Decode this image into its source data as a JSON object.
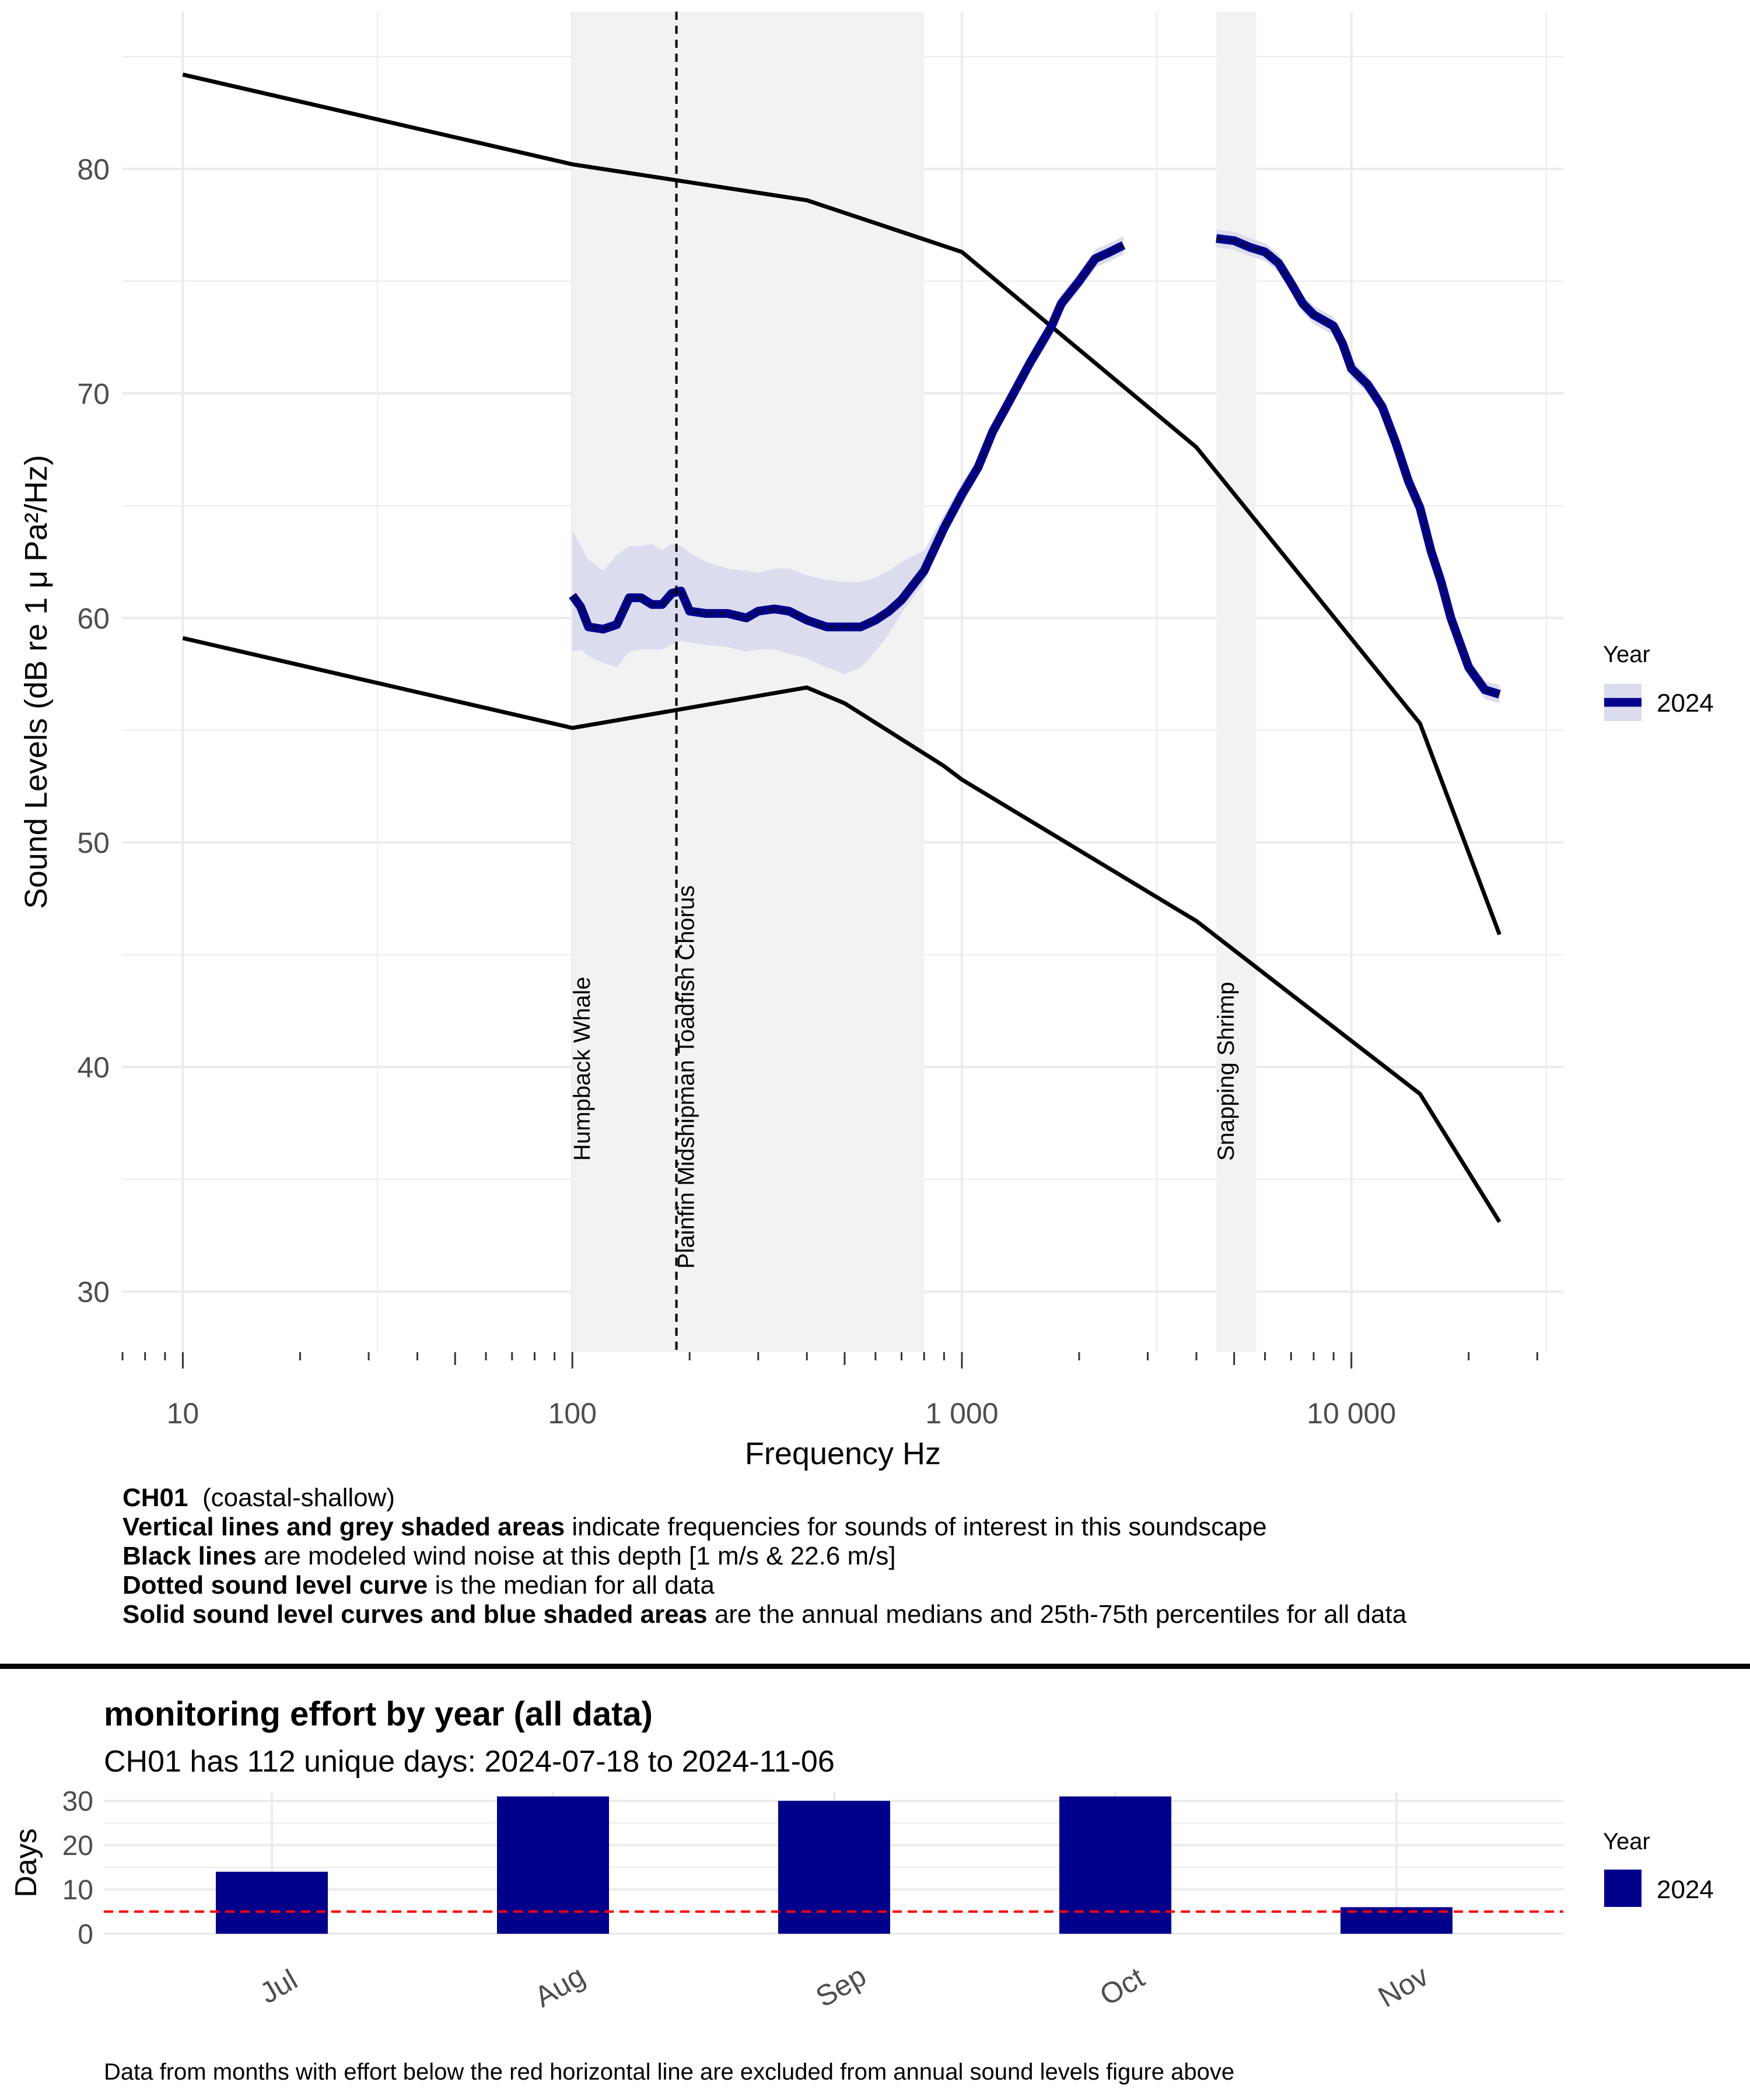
{
  "chart_data": [
    {
      "type": "line",
      "xlabel": "Frequency Hz",
      "ylabel": "Sound Levels (dB re 1 μ Pa²/Hz)",
      "x_scale": "log10",
      "xlim": [
        7,
        35000
      ],
      "ylim": [
        27.3,
        87
      ],
      "x_ticks": [
        10,
        100,
        1000,
        10000
      ],
      "x_tick_labels": [
        "10",
        "100",
        "1 000",
        "10 000"
      ],
      "y_ticks": [
        30,
        40,
        50,
        60,
        70,
        80
      ],
      "y_tick_labels": [
        "30",
        "40",
        "50",
        "60",
        "70",
        "80"
      ],
      "grid": true,
      "legend": {
        "title": "Year",
        "entries": [
          "2024"
        ],
        "position": "right"
      },
      "shaded_bands": [
        {
          "label": "Humpback Whale",
          "x_range": [
            100,
            800
          ]
        },
        {
          "label": "Snapping Shrimp",
          "x_range": [
            4500,
            5700
          ]
        }
      ],
      "vertical_lines": [
        {
          "label": "Plainfin Midshipman Toadfish Chorus",
          "x": 185
        }
      ],
      "wind_noise_lines": [
        {
          "x": [
            10,
            100,
            400,
            1000,
            4000,
            15000,
            24000
          ],
          "y": [
            84.2,
            80.2,
            78.6,
            76.3,
            67.6,
            55.3,
            45.9
          ]
        },
        {
          "x": [
            10,
            100,
            400,
            500,
            900,
            1000,
            4000,
            15000,
            24000
          ],
          "y": [
            59.1,
            55.1,
            56.9,
            56.2,
            53.4,
            52.8,
            46.5,
            38.8,
            33.1
          ]
        }
      ],
      "series": [
        {
          "name": "2024",
          "color": "#00008b",
          "segments": [
            {
              "x": [
                100,
                105,
                110,
                120,
                130,
                140,
                150,
                160,
                170,
                180,
                190,
                200,
                220,
                250,
                280,
                300,
                330,
                360,
                400,
                450,
                500,
                550,
                600,
                650,
                700,
                800,
                900,
                1000,
                1100,
                1200,
                1300,
                1500,
                1700,
                1800,
                2000,
                2200,
                2400,
                2600
              ],
              "y": [
                61.0,
                60.5,
                59.6,
                59.5,
                59.7,
                60.9,
                60.9,
                60.6,
                60.6,
                61.1,
                61.2,
                60.3,
                60.2,
                60.2,
                60.0,
                60.3,
                60.4,
                60.3,
                59.9,
                59.6,
                59.6,
                59.6,
                59.9,
                60.3,
                60.8,
                62.1,
                64.0,
                65.5,
                66.7,
                68.3,
                69.4,
                71.4,
                73.0,
                74.0,
                75.0,
                76.0,
                76.3,
                76.6
              ],
              "lower": [
                58.5,
                58.6,
                58.3,
                58.0,
                57.8,
                58.5,
                58.6,
                58.6,
                58.6,
                58.8,
                59.0,
                58.9,
                58.8,
                58.7,
                58.5,
                58.6,
                58.6,
                58.4,
                58.2,
                57.8,
                57.5,
                57.8,
                58.5,
                59.3,
                60.2,
                61.6,
                63.6,
                65.0,
                66.3,
                67.9,
                69.0,
                71.0,
                72.5,
                73.6,
                74.6,
                75.6,
                75.9,
                76.2
              ],
              "upper": [
                63.9,
                63.2,
                62.6,
                62.1,
                62.8,
                63.2,
                63.2,
                63.3,
                63.0,
                63.3,
                63.2,
                62.9,
                62.5,
                62.2,
                62.1,
                62.0,
                62.2,
                62.2,
                61.9,
                61.7,
                61.6,
                61.6,
                61.8,
                62.1,
                62.5,
                63.0,
                64.6,
                66.0,
                67.1,
                68.7,
                69.8,
                71.8,
                73.4,
                74.4,
                75.4,
                76.4,
                76.7,
                77.0
              ]
            },
            {
              "x": [
                4500,
                5000,
                5500,
                6000,
                6500,
                7000,
                7500,
                8000,
                9000,
                9500,
                10000,
                11000,
                12000,
                13000,
                14000,
                15000,
                16000,
                17000,
                18000,
                20000,
                22000,
                24000
              ],
              "y": [
                76.9,
                76.8,
                76.5,
                76.3,
                75.8,
                74.9,
                74.0,
                73.5,
                73.0,
                72.2,
                71.1,
                70.4,
                69.4,
                67.8,
                66.1,
                64.9,
                63.0,
                61.6,
                60.0,
                57.8,
                56.8,
                56.6
              ],
              "lower": [
                76.5,
                76.4,
                76.1,
                75.9,
                75.4,
                74.5,
                73.6,
                73.1,
                72.6,
                71.8,
                70.7,
                70.0,
                69.0,
                67.4,
                65.7,
                64.5,
                62.6,
                61.2,
                59.6,
                57.4,
                56.4,
                56.2
              ],
              "upper": [
                77.3,
                77.2,
                76.9,
                76.7,
                76.2,
                75.3,
                74.4,
                73.9,
                73.4,
                72.6,
                71.5,
                70.8,
                69.8,
                68.2,
                66.5,
                65.3,
                63.4,
                62.0,
                60.4,
                58.2,
                57.2,
                57.0
              ]
            }
          ]
        }
      ]
    },
    {
      "type": "bar",
      "title": "monitoring effort by year (all data)",
      "subtitle": "CH01 has 112 unique days: 2024-07-18 to 2024-11-06",
      "ylabel": "Days",
      "xlabel": "",
      "categories": [
        "Jul",
        "Aug",
        "Sep",
        "Oct",
        "Nov"
      ],
      "series": [
        {
          "name": "2024",
          "values": [
            14,
            31,
            30,
            31,
            6
          ],
          "color": "#00008b"
        }
      ],
      "ylim": [
        0,
        32
      ],
      "y_ticks": [
        0,
        10,
        20,
        30
      ],
      "y_tick_labels": [
        "0",
        "10",
        "20",
        "30"
      ],
      "threshold": {
        "value": 5,
        "color": "#ff0000",
        "style": "dashed"
      },
      "legend": {
        "title": "Year",
        "entries": [
          "2024"
        ],
        "position": "right"
      },
      "grid": true
    }
  ],
  "caption": {
    "line1_bold": "CH01",
    "line1_rest": "(coastal-shallow)",
    "line2_bold": "Vertical  lines and grey shaded areas",
    "line2_rest": "indicate frequencies for sounds of interest in this soundscape",
    "line3_bold": "Black lines",
    "line3_rest": "are modeled wind noise at this depth [1 m/s & 22.6 m/s]",
    "line4_bold": "Dotted sound level curve",
    "line4_rest": "is the median for all data",
    "line5_bold": "Solid sound level curves and blue shaded areas",
    "line5_rest": "are the annual medians and 25th-75th percentiles for all data"
  },
  "effort": {
    "title": "monitoring effort by year (all data)",
    "subtitle": "CH01 has 112 unique days: 2024-07-18 to 2024-11-06",
    "footnote": "Data from months with effort below the red horizontal line are excluded from annual sound levels figure above"
  },
  "colors": {
    "series_blue": "#00008b",
    "ribbon": "#dcdcef",
    "band_grey": "#f2f2f2",
    "threshold_red": "#ff0000",
    "grid": "#ebebeb"
  }
}
